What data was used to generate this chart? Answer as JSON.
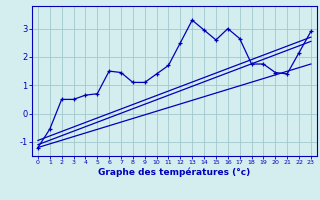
{
  "xlabel": "Graphe des températures (°c)",
  "bg_color": "#d4eef0",
  "grid_color": "#a0c8cc",
  "line_color": "#0000bb",
  "x_ticks": [
    0,
    1,
    2,
    3,
    4,
    5,
    6,
    7,
    8,
    9,
    10,
    11,
    12,
    13,
    14,
    15,
    16,
    17,
    18,
    19,
    20,
    21,
    22,
    23
  ],
  "xlim": [
    -0.5,
    23.5
  ],
  "ylim": [
    -1.5,
    3.8
  ],
  "yticks": [
    -1,
    0,
    1,
    2,
    3
  ],
  "main_x": [
    0,
    1,
    2,
    3,
    4,
    5,
    6,
    7,
    8,
    9,
    10,
    11,
    12,
    13,
    14,
    15,
    16,
    17,
    18,
    19,
    20,
    21,
    22,
    23
  ],
  "main_y": [
    -1.2,
    -0.55,
    0.5,
    0.5,
    0.65,
    0.7,
    1.5,
    1.45,
    1.1,
    1.1,
    1.4,
    1.7,
    2.5,
    3.3,
    2.95,
    2.6,
    3.0,
    2.65,
    1.75,
    1.75,
    1.45,
    1.4,
    2.15,
    2.9
  ],
  "reg_line1_x": [
    0,
    23
  ],
  "reg_line1_y": [
    -1.1,
    2.55
  ],
  "reg_line2_x": [
    0,
    23
  ],
  "reg_line2_y": [
    -0.95,
    2.7
  ],
  "reg_line3_x": [
    0,
    23
  ],
  "reg_line3_y": [
    -1.2,
    1.75
  ]
}
